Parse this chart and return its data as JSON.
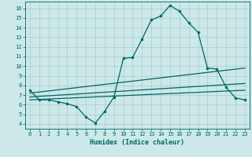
{
  "xlabel": "Humidex (Indice chaleur)",
  "ylabel": "",
  "xlim": [
    -0.5,
    23.5
  ],
  "ylim": [
    3.5,
    16.7
  ],
  "yticks": [
    4,
    5,
    6,
    7,
    8,
    9,
    10,
    11,
    12,
    13,
    14,
    15,
    16
  ],
  "xticks": [
    0,
    1,
    2,
    3,
    4,
    5,
    6,
    7,
    8,
    9,
    10,
    11,
    12,
    13,
    14,
    15,
    16,
    17,
    18,
    19,
    20,
    21,
    22,
    23
  ],
  "bg_color": "#cce8e8",
  "grid_color": "#aacccc",
  "line_color": "#006666",
  "curve1_x": [
    0,
    1,
    2,
    3,
    4,
    5,
    6,
    7,
    8,
    9,
    10,
    11,
    12,
    13,
    14,
    15,
    16,
    17,
    18,
    19,
    20,
    21,
    22,
    23
  ],
  "curve1_y": [
    7.5,
    6.5,
    6.5,
    6.3,
    6.1,
    5.8,
    4.7,
    4.1,
    5.3,
    6.8,
    10.8,
    10.9,
    12.8,
    14.8,
    15.2,
    16.3,
    15.7,
    14.5,
    13.5,
    9.8,
    9.7,
    7.8,
    6.7,
    6.5
  ],
  "curve2_x": [
    0,
    23
  ],
  "curve2_y": [
    6.5,
    7.5
  ],
  "curve3_x": [
    0,
    23
  ],
  "curve3_y": [
    6.8,
    8.2
  ],
  "curve4_x": [
    0,
    23
  ],
  "curve4_y": [
    7.2,
    9.8
  ],
  "marker": ".",
  "marker_size": 3,
  "linewidth": 0.9
}
